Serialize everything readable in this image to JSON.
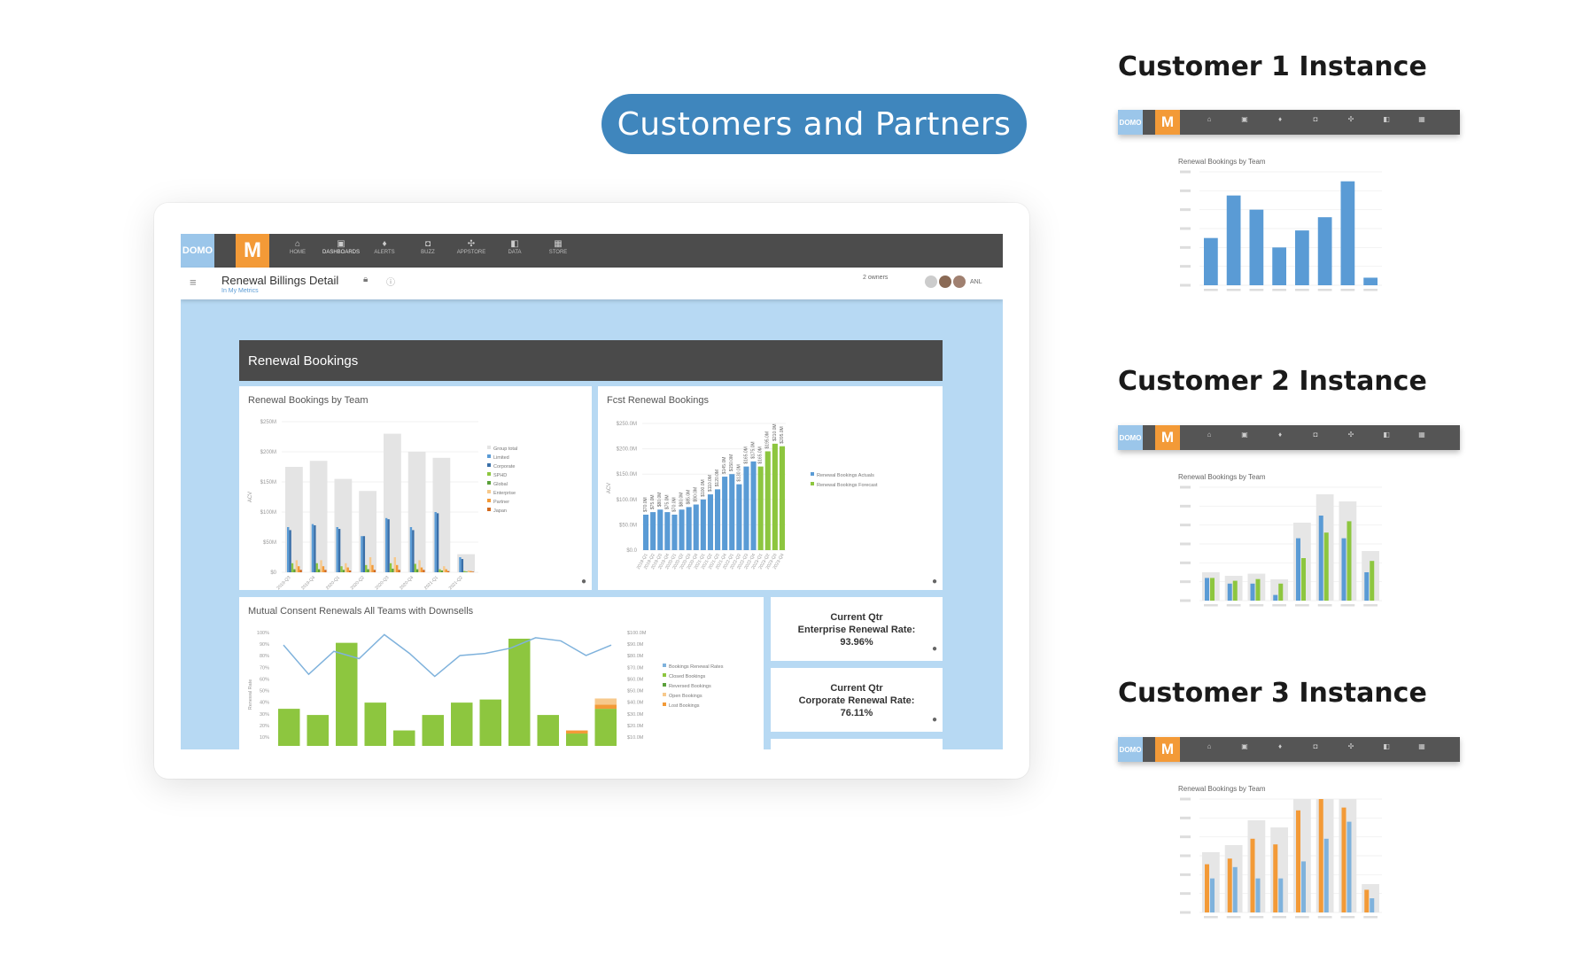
{
  "banner": {
    "label": "Customers and Partners"
  },
  "app": {
    "domo_logo": "DOMO",
    "m_logo": "M",
    "nav": [
      {
        "label": "HOME",
        "icon": "home-icon",
        "glyph": "⌂"
      },
      {
        "label": "DASHBOARDS",
        "icon": "dashboard-icon",
        "glyph": "▣",
        "active": true
      },
      {
        "label": "ALERTS",
        "icon": "alert-icon",
        "glyph": "♦"
      },
      {
        "label": "BUZZ",
        "icon": "chat-icon",
        "glyph": "◘"
      },
      {
        "label": "APPSTORE",
        "icon": "appstore-icon",
        "glyph": "✣"
      },
      {
        "label": "DATA",
        "icon": "data-icon",
        "glyph": "◧"
      },
      {
        "label": "STORE",
        "icon": "store-icon",
        "glyph": "▦"
      }
    ],
    "page_title": "Renewal Billings Detail",
    "page_subtitle": "In My Metrics",
    "owners": "2 owners",
    "share_label": "ANL",
    "section_title": "Renewal Bookings"
  },
  "charts_text": {
    "team_title": "Renewal Bookings by Team",
    "fcst_title": "Fcst Renewal Bookings",
    "mutual_title": "Mutual Consent Renewals All Teams with Downsells"
  },
  "kpis": [
    {
      "line1": "Current Qtr",
      "line2": "Enterprise Renewal Rate:",
      "value": "93.96%"
    },
    {
      "line1": "Current Qtr",
      "line2": "Corporate Renewal Rate:",
      "value": "76.11%"
    }
  ],
  "customers": [
    {
      "title": "Customer 1 Instance",
      "chart_title": "Renewal Bookings by Team"
    },
    {
      "title": "Customer 2 Instance",
      "chart_title": "Renewal Bookings by Team"
    },
    {
      "title": "Customer 3 Instance",
      "chart_title": "Renewal Bookings by Team"
    }
  ],
  "colors": {
    "accent": "#3f86bd",
    "orange": "#f39a37",
    "blue": "#5a9bd5",
    "green": "#8dc63f",
    "gray_bar": "#e4e4e4",
    "line": "#7fb2dc"
  },
  "chart_data": [
    {
      "type": "bar",
      "title": "Renewal Bookings by Team",
      "ylabel": "ACV",
      "categories": [
        "2019-Q3",
        "2019-Q4",
        "2020-Q1",
        "2020-Q2",
        "2020-Q3",
        "2020-Q4",
        "2021-Q1",
        "2021-Q2"
      ],
      "ylim": [
        0,
        250
      ],
      "y_ticks": [
        "$0",
        "$50M",
        "$100M",
        "$150M",
        "$200M",
        "$250M"
      ],
      "series": [
        {
          "name": "Group total",
          "values": [
            175,
            185,
            155,
            135,
            230,
            200,
            190,
            30
          ]
        },
        {
          "name": "Limited",
          "values": [
            75,
            80,
            75,
            60,
            90,
            75,
            100,
            25
          ]
        },
        {
          "name": "Corporate",
          "values": [
            70,
            78,
            72,
            60,
            88,
            70,
            98,
            22
          ]
        },
        {
          "name": "SPHD",
          "values": [
            15,
            15,
            10,
            12,
            15,
            14,
            5,
            2
          ]
        },
        {
          "name": "Global",
          "values": [
            5,
            5,
            4,
            5,
            6,
            5,
            3,
            1
          ]
        },
        {
          "name": "Enterprise",
          "values": [
            20,
            20,
            15,
            25,
            25,
            20,
            10,
            3
          ]
        },
        {
          "name": "Partner",
          "values": [
            10,
            10,
            8,
            12,
            12,
            8,
            5,
            2
          ]
        },
        {
          "name": "Japan",
          "values": [
            4,
            4,
            3,
            4,
            4,
            4,
            2,
            1
          ]
        }
      ]
    },
    {
      "type": "bar",
      "title": "Fcst Renewal Bookings",
      "ylabel": "ACV",
      "y_ticks": [
        "$0.0",
        "$50.0M",
        "$100.0M",
        "$150.0M",
        "$200.0M",
        "$250.0M"
      ],
      "ylim": [
        0,
        250
      ],
      "series": [
        {
          "name": "Renewal Bookings Actuals",
          "values": [
            70,
            75,
            80,
            75,
            70,
            80,
            85,
            90,
            100,
            110,
            120,
            145,
            150,
            130,
            165,
            175,
            200,
            205,
            195,
            180
          ]
        },
        {
          "name": "Renewal Bookings Forecast",
          "values": [
            0,
            0,
            0,
            0,
            0,
            0,
            0,
            0,
            0,
            0,
            0,
            0,
            0,
            0,
            0,
            0,
            165,
            195,
            210,
            205
          ]
        }
      ]
    },
    {
      "type": "bar",
      "title": "Mutual Consent Renewals All Teams with Downsells",
      "ylabel": "Renewal Rate",
      "y_ticks": [
        "10%",
        "20%",
        "30%",
        "40%",
        "50%",
        "60%",
        "70%",
        "80%",
        "90%",
        "100%"
      ],
      "series": [
        {
          "name": "Bookings Renewal Rates",
          "values": [
            88,
            60,
            82,
            75,
            98,
            80,
            58,
            78,
            80,
            85,
            95,
            92,
            78,
            88
          ]
        },
        {
          "name": "Closed Bookings",
          "values": [
            36,
            30,
            100,
            42,
            15,
            30,
            42,
            45,
            104,
            30,
            12,
            36
          ]
        },
        {
          "name": "Reversed Bookings",
          "values": [
            0,
            0,
            0,
            0,
            0,
            0,
            0,
            0,
            0,
            0,
            0,
            0
          ]
        },
        {
          "name": "Open Bookings",
          "values": [
            0,
            0,
            0,
            0,
            0,
            0,
            0,
            0,
            0,
            0,
            0,
            6
          ]
        },
        {
          "name": "Lost Bookings",
          "values": [
            0,
            0,
            0,
            0,
            0,
            0,
            0,
            0,
            0,
            0,
            3,
            4
          ]
        }
      ]
    },
    {
      "type": "bar",
      "title": "Renewal Bookings by Team",
      "series": [
        {
          "name": "",
          "values": [
            50,
            95,
            80,
            40,
            58,
            72,
            110,
            8
          ]
        }
      ]
    },
    {
      "type": "bar",
      "title": "Renewal Bookings by Team",
      "series": [
        {
          "name": "",
          "values": [
            40,
            30,
            30,
            10,
            110,
            150,
            110,
            50
          ]
        },
        {
          "name": "",
          "values": [
            40,
            35,
            38,
            30,
            75,
            120,
            140,
            70
          ]
        }
      ]
    },
    {
      "type": "bar",
      "title": "Renewal Bookings by Team",
      "series": [
        {
          "name": "",
          "values": [
            85,
            95,
            130,
            120,
            180,
            200,
            185,
            40
          ]
        },
        {
          "name": "",
          "values": [
            60,
            80,
            60,
            60,
            90,
            130,
            160,
            25
          ]
        }
      ]
    }
  ]
}
